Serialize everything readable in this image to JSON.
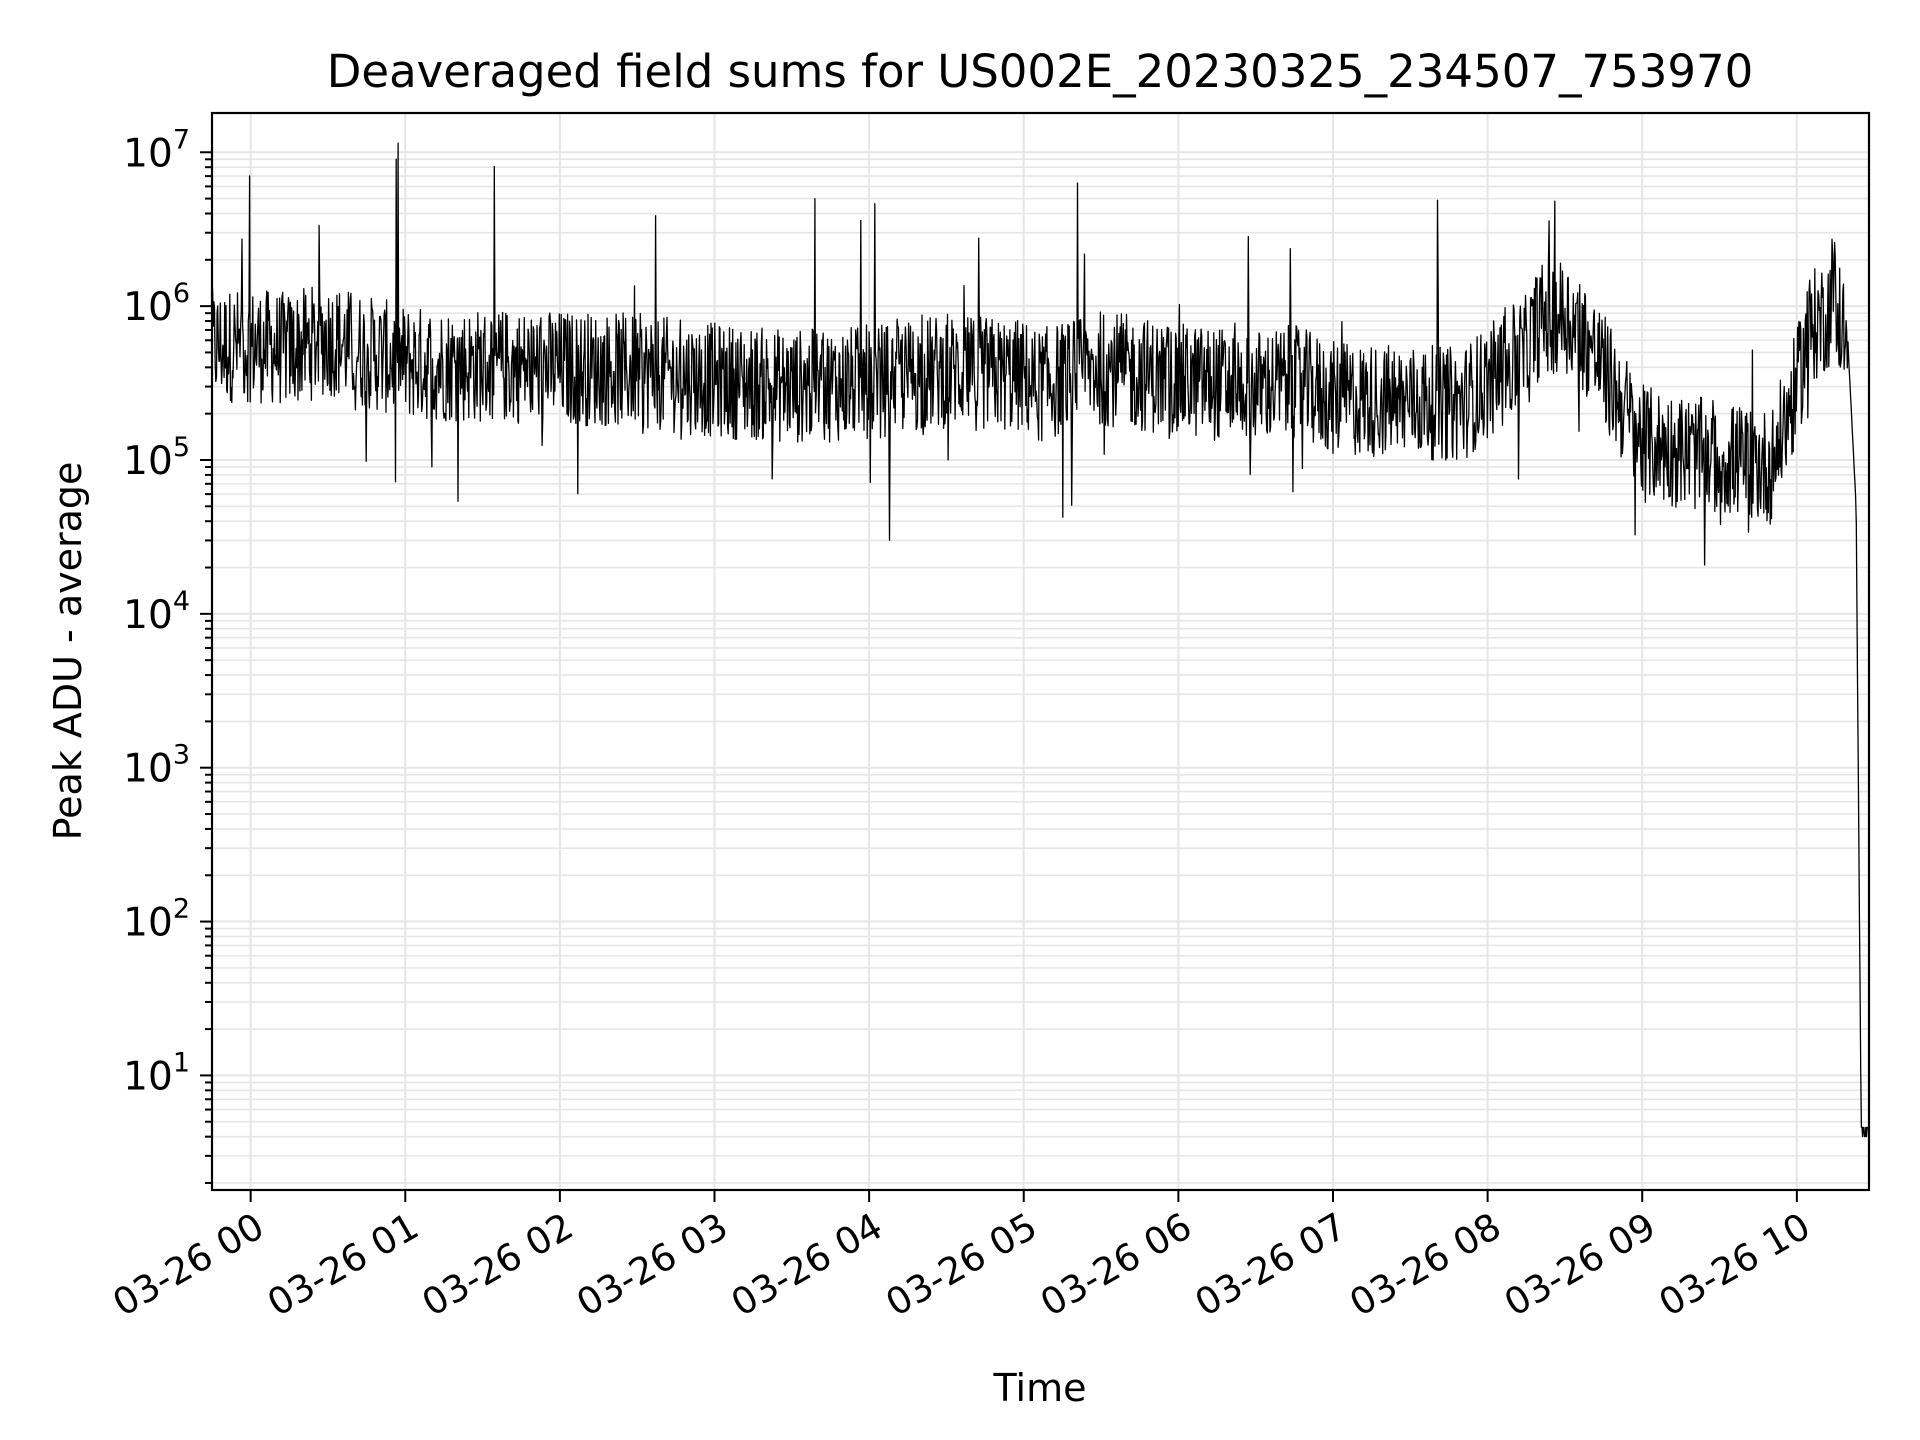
{
  "chart_data": {
    "type": "line",
    "title": "Deaveraged field sums for US002E_20230325_234507_753970",
    "xlabel": "Time",
    "ylabel": "Peak ADU - average",
    "yscale": "log",
    "ylim": [
      1.8,
      18000000
    ],
    "xlim": [
      "03-25 23:45",
      "03-26 10:28"
    ],
    "grid": true,
    "x_ticks": [
      "03-26 00",
      "03-26 01",
      "03-26 02",
      "03-26 03",
      "03-26 04",
      "03-26 05",
      "03-26 06",
      "03-26 07",
      "03-26 08",
      "03-26 09",
      "03-26 10"
    ],
    "y_ticks": [
      {
        "base": "10",
        "exp": "1",
        "value": 10
      },
      {
        "base": "10",
        "exp": "2",
        "value": 100
      },
      {
        "base": "10",
        "exp": "3",
        "value": 1000
      },
      {
        "base": "10",
        "exp": "4",
        "value": 10000
      },
      {
        "base": "10",
        "exp": "5",
        "value": 100000
      },
      {
        "base": "10",
        "exp": "6",
        "value": 1000000
      },
      {
        "base": "10",
        "exp": "7",
        "value": 10000000
      }
    ],
    "line_color": "#000000",
    "grid_color": "#e6e6e6",
    "series": [
      {
        "x": [
          "03-25 23:45",
          "03-26 00:00",
          "03-26 00:15",
          "03-26 00:30",
          "03-26 00:45",
          "03-26 00:50",
          "03-26 01:00",
          "03-26 01:10",
          "03-26 01:30",
          "03-26 02:00",
          "03-26 02:30",
          "03-26 03:00",
          "03-26 03:30",
          "03-26 04:00",
          "03-26 04:30",
          "03-26 05:00",
          "03-26 05:05",
          "03-26 05:30",
          "03-26 06:00",
          "03-26 06:30",
          "03-26 06:45",
          "03-26 07:00",
          "03-26 07:30",
          "03-26 07:50",
          "03-26 08:00",
          "03-26 08:15",
          "03-26 08:20",
          "03-26 08:30",
          "03-26 08:40",
          "03-26 09:00",
          "03-26 09:20",
          "03-26 09:35",
          "03-26 09:50",
          "03-26 10:00",
          "03-26 10:05",
          "03-26 10:12",
          "03-26 10:15",
          "03-26 10:20",
          "03-26 10:23",
          "03-26 10:25",
          "03-26 10:28"
        ],
        "y": [
          550000,
          560000,
          520000,
          620000,
          500000,
          480000,
          430000,
          420000,
          410000,
          400000,
          380000,
          330000,
          300000,
          320000,
          380000,
          350000,
          300000,
          400000,
          330000,
          300000,
          320000,
          250000,
          240000,
          230000,
          320000,
          500000,
          800000,
          900000,
          550000,
          130000,
          110000,
          100000,
          90000,
          300000,
          700000,
          900000,
          1200000,
          500000,
          50000,
          4,
          4
        ]
      }
    ]
  }
}
